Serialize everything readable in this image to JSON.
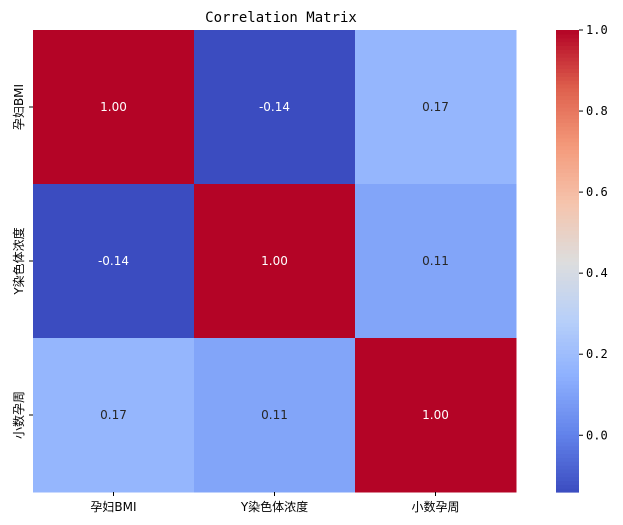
{
  "chart_data": {
    "type": "heatmap",
    "title": "Correlation Matrix",
    "xlabel": "",
    "ylabel": "",
    "x_categories": [
      "孕妇BMI",
      "Y染色体浓度",
      "小数孕周"
    ],
    "y_categories": [
      "孕妇BMI",
      "Y染色体浓度",
      "小数孕周"
    ],
    "values": [
      [
        1.0,
        -0.14,
        0.17
      ],
      [
        -0.14,
        1.0,
        0.11
      ],
      [
        0.17,
        0.11,
        1.0
      ]
    ],
    "cell_labels": [
      [
        "1.00",
        "-0.14",
        "0.17"
      ],
      [
        "-0.14",
        "1.00",
        "0.11"
      ],
      [
        "0.17",
        "0.11",
        "1.00"
      ]
    ],
    "colormap": "coolwarm",
    "color_range": [
      -0.14,
      1.0
    ],
    "colorbar_ticks": [
      0.0,
      0.2,
      0.4,
      0.6,
      0.8,
      1.0
    ],
    "colorbar_tick_labels": [
      "0.0",
      "0.2",
      "0.4",
      "0.6",
      "0.8",
      "1.0"
    ],
    "colorbar_placement": "right",
    "grid": false
  }
}
